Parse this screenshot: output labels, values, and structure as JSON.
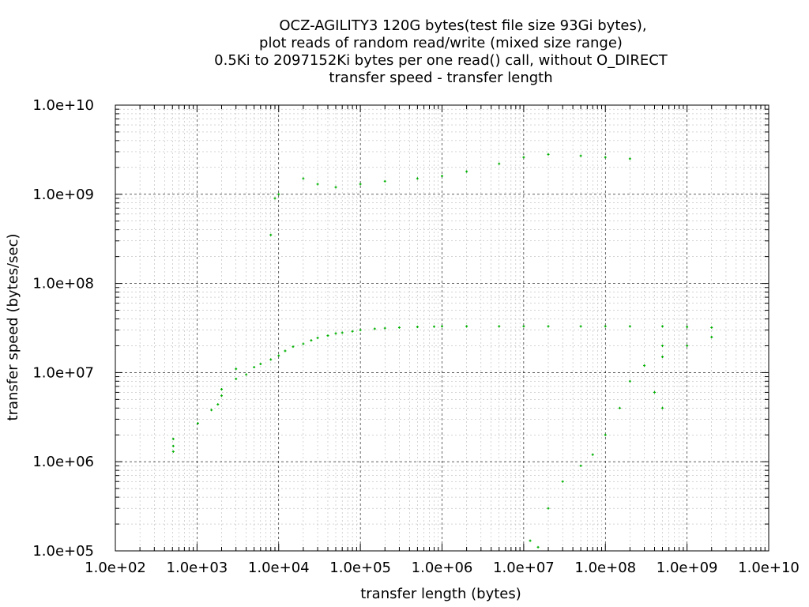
{
  "chart_data": {
    "type": "scatter",
    "title_lines": [
      "OCZ-AGILITY3 120G bytes(test file size 93Gi bytes),",
      "plot reads of random read/write (mixed size range)",
      "0.5Ki to 2097152Ki bytes per one read() call, without O_DIRECT",
      "transfer speed - transfer length"
    ],
    "xlabel": "transfer length (bytes)",
    "ylabel": "transfer speed (bytes/sec)",
    "x_scale": "log",
    "y_scale": "log",
    "xlim": [
      100,
      10000000000
    ],
    "ylim": [
      100000,
      10000000000
    ],
    "x_ticks": [
      "1.0e+02",
      "1.0e+03",
      "1.0e+04",
      "1.0e+05",
      "1.0e+06",
      "1.0e+07",
      "1.0e+08",
      "1.0e+09",
      "1.0e+10"
    ],
    "y_ticks": [
      "1.0e+05",
      "1.0e+06",
      "1.0e+07",
      "1.0e+08",
      "1.0e+09",
      "1.0e+10"
    ],
    "grid": true,
    "marker": "+",
    "series": [
      {
        "color": "#00b000",
        "points": [
          [
            512,
            1800000
          ],
          [
            512,
            1500000
          ],
          [
            512,
            1300000
          ],
          [
            1024,
            2700000
          ],
          [
            1500,
            3800000
          ],
          [
            1800,
            4400000
          ],
          [
            2000,
            6500000
          ],
          [
            2000,
            5500000
          ],
          [
            3000,
            8500000
          ],
          [
            3000,
            11000000
          ],
          [
            4000,
            9500000
          ],
          [
            5000,
            11500000
          ],
          [
            6000,
            12500000
          ],
          [
            8000,
            14000000
          ],
          [
            10000,
            15500000
          ],
          [
            12000,
            17500000
          ],
          [
            15000,
            19500000
          ],
          [
            20000,
            21000000
          ],
          [
            25000,
            23000000
          ],
          [
            30000,
            24500000
          ],
          [
            40000,
            26000000
          ],
          [
            50000,
            27500000
          ],
          [
            60000,
            28000000
          ],
          [
            80000,
            29000000
          ],
          [
            100000,
            30000000
          ],
          [
            150000,
            31000000
          ],
          [
            200000,
            31500000
          ],
          [
            300000,
            32000000
          ],
          [
            500000,
            32500000
          ],
          [
            800000,
            32800000
          ],
          [
            1000000,
            33000000
          ],
          [
            2000000,
            33000000
          ],
          [
            5000000,
            33000000
          ],
          [
            10000000,
            33000000
          ],
          [
            20000000,
            33000000
          ],
          [
            50000000,
            33000000
          ],
          [
            100000000,
            33000000
          ],
          [
            200000000,
            33000000
          ],
          [
            500000000,
            33000000
          ],
          [
            1000000000,
            32500000
          ],
          [
            2000000000,
            32000000
          ],
          [
            8000,
            350000000
          ],
          [
            9000,
            900000000
          ],
          [
            10000,
            1000000000
          ],
          [
            20000,
            1500000000
          ],
          [
            30000,
            1300000000
          ],
          [
            50000,
            1200000000
          ],
          [
            100000,
            1300000000
          ],
          [
            200000,
            1400000000
          ],
          [
            500000,
            1500000000
          ],
          [
            1000000,
            1600000000
          ],
          [
            2000000,
            1800000000
          ],
          [
            5000000,
            2200000000
          ],
          [
            10000000,
            2600000000
          ],
          [
            20000000,
            2800000000
          ],
          [
            50000000,
            2700000000
          ],
          [
            100000000,
            2600000000
          ],
          [
            200000000,
            2500000000
          ],
          [
            12000000,
            130000
          ],
          [
            15000000,
            110000
          ],
          [
            20000000,
            300000
          ],
          [
            30000000,
            600000
          ],
          [
            50000000,
            900000
          ],
          [
            70000000,
            1200000
          ],
          [
            100000000,
            2000000
          ],
          [
            150000000,
            4000000
          ],
          [
            200000000,
            8000000
          ],
          [
            300000000,
            12000000
          ],
          [
            400000000,
            6000000
          ],
          [
            500000000,
            4000000
          ],
          [
            500000000,
            15000000
          ],
          [
            500000000,
            20000000
          ],
          [
            1000000000,
            20000000
          ],
          [
            2000000000,
            25000000
          ]
        ]
      }
    ]
  }
}
